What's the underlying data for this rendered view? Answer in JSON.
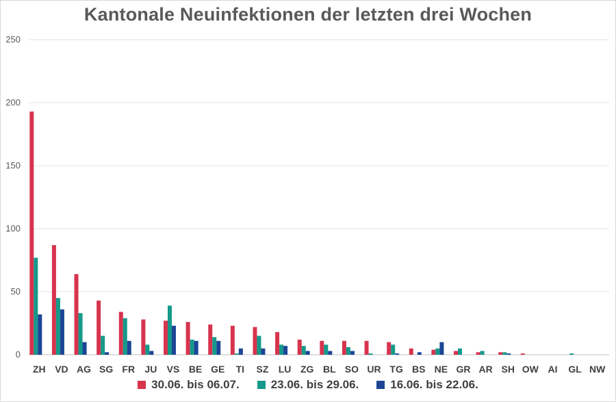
{
  "chart_data": {
    "type": "bar",
    "title": "Kantonale Neuinfektionen der letzten drei Wochen",
    "categories": [
      "ZH",
      "VD",
      "AG",
      "SG",
      "FR",
      "JU",
      "VS",
      "BE",
      "GE",
      "TI",
      "SZ",
      "LU",
      "ZG",
      "BL",
      "SO",
      "UR",
      "TG",
      "BS",
      "NE",
      "GR",
      "AR",
      "SH",
      "OW",
      "AI",
      "GL",
      "NW"
    ],
    "series": [
      {
        "name": "30.06. bis 06.07.",
        "color": "#d7344e",
        "values": [
          193,
          87,
          64,
          43,
          34,
          28,
          27,
          26,
          24,
          23,
          22,
          18,
          12,
          11,
          11,
          11,
          10,
          5,
          4,
          3,
          2,
          2,
          1,
          0,
          0,
          0
        ]
      },
      {
        "name": "23.06. bis 29.06.",
        "color": "#15998a",
        "values": [
          77,
          45,
          33,
          15,
          29,
          8,
          39,
          12,
          14,
          1,
          15,
          8,
          7,
          8,
          6,
          1,
          8,
          0,
          5,
          5,
          3,
          2,
          0,
          0,
          1,
          0
        ]
      },
      {
        "name": "16.06. bis 22.06.",
        "color": "#1c4596",
        "values": [
          32,
          36,
          10,
          2,
          11,
          3,
          23,
          11,
          11,
          5,
          5,
          7,
          3,
          3,
          3,
          0,
          1,
          2,
          10,
          0,
          0,
          1,
          0,
          0,
          0,
          0
        ]
      }
    ],
    "yticks": [
      0,
      50,
      100,
      150,
      200,
      250
    ],
    "ylim": [
      0,
      250
    ],
    "grid": true,
    "legend_position": "bottom"
  }
}
